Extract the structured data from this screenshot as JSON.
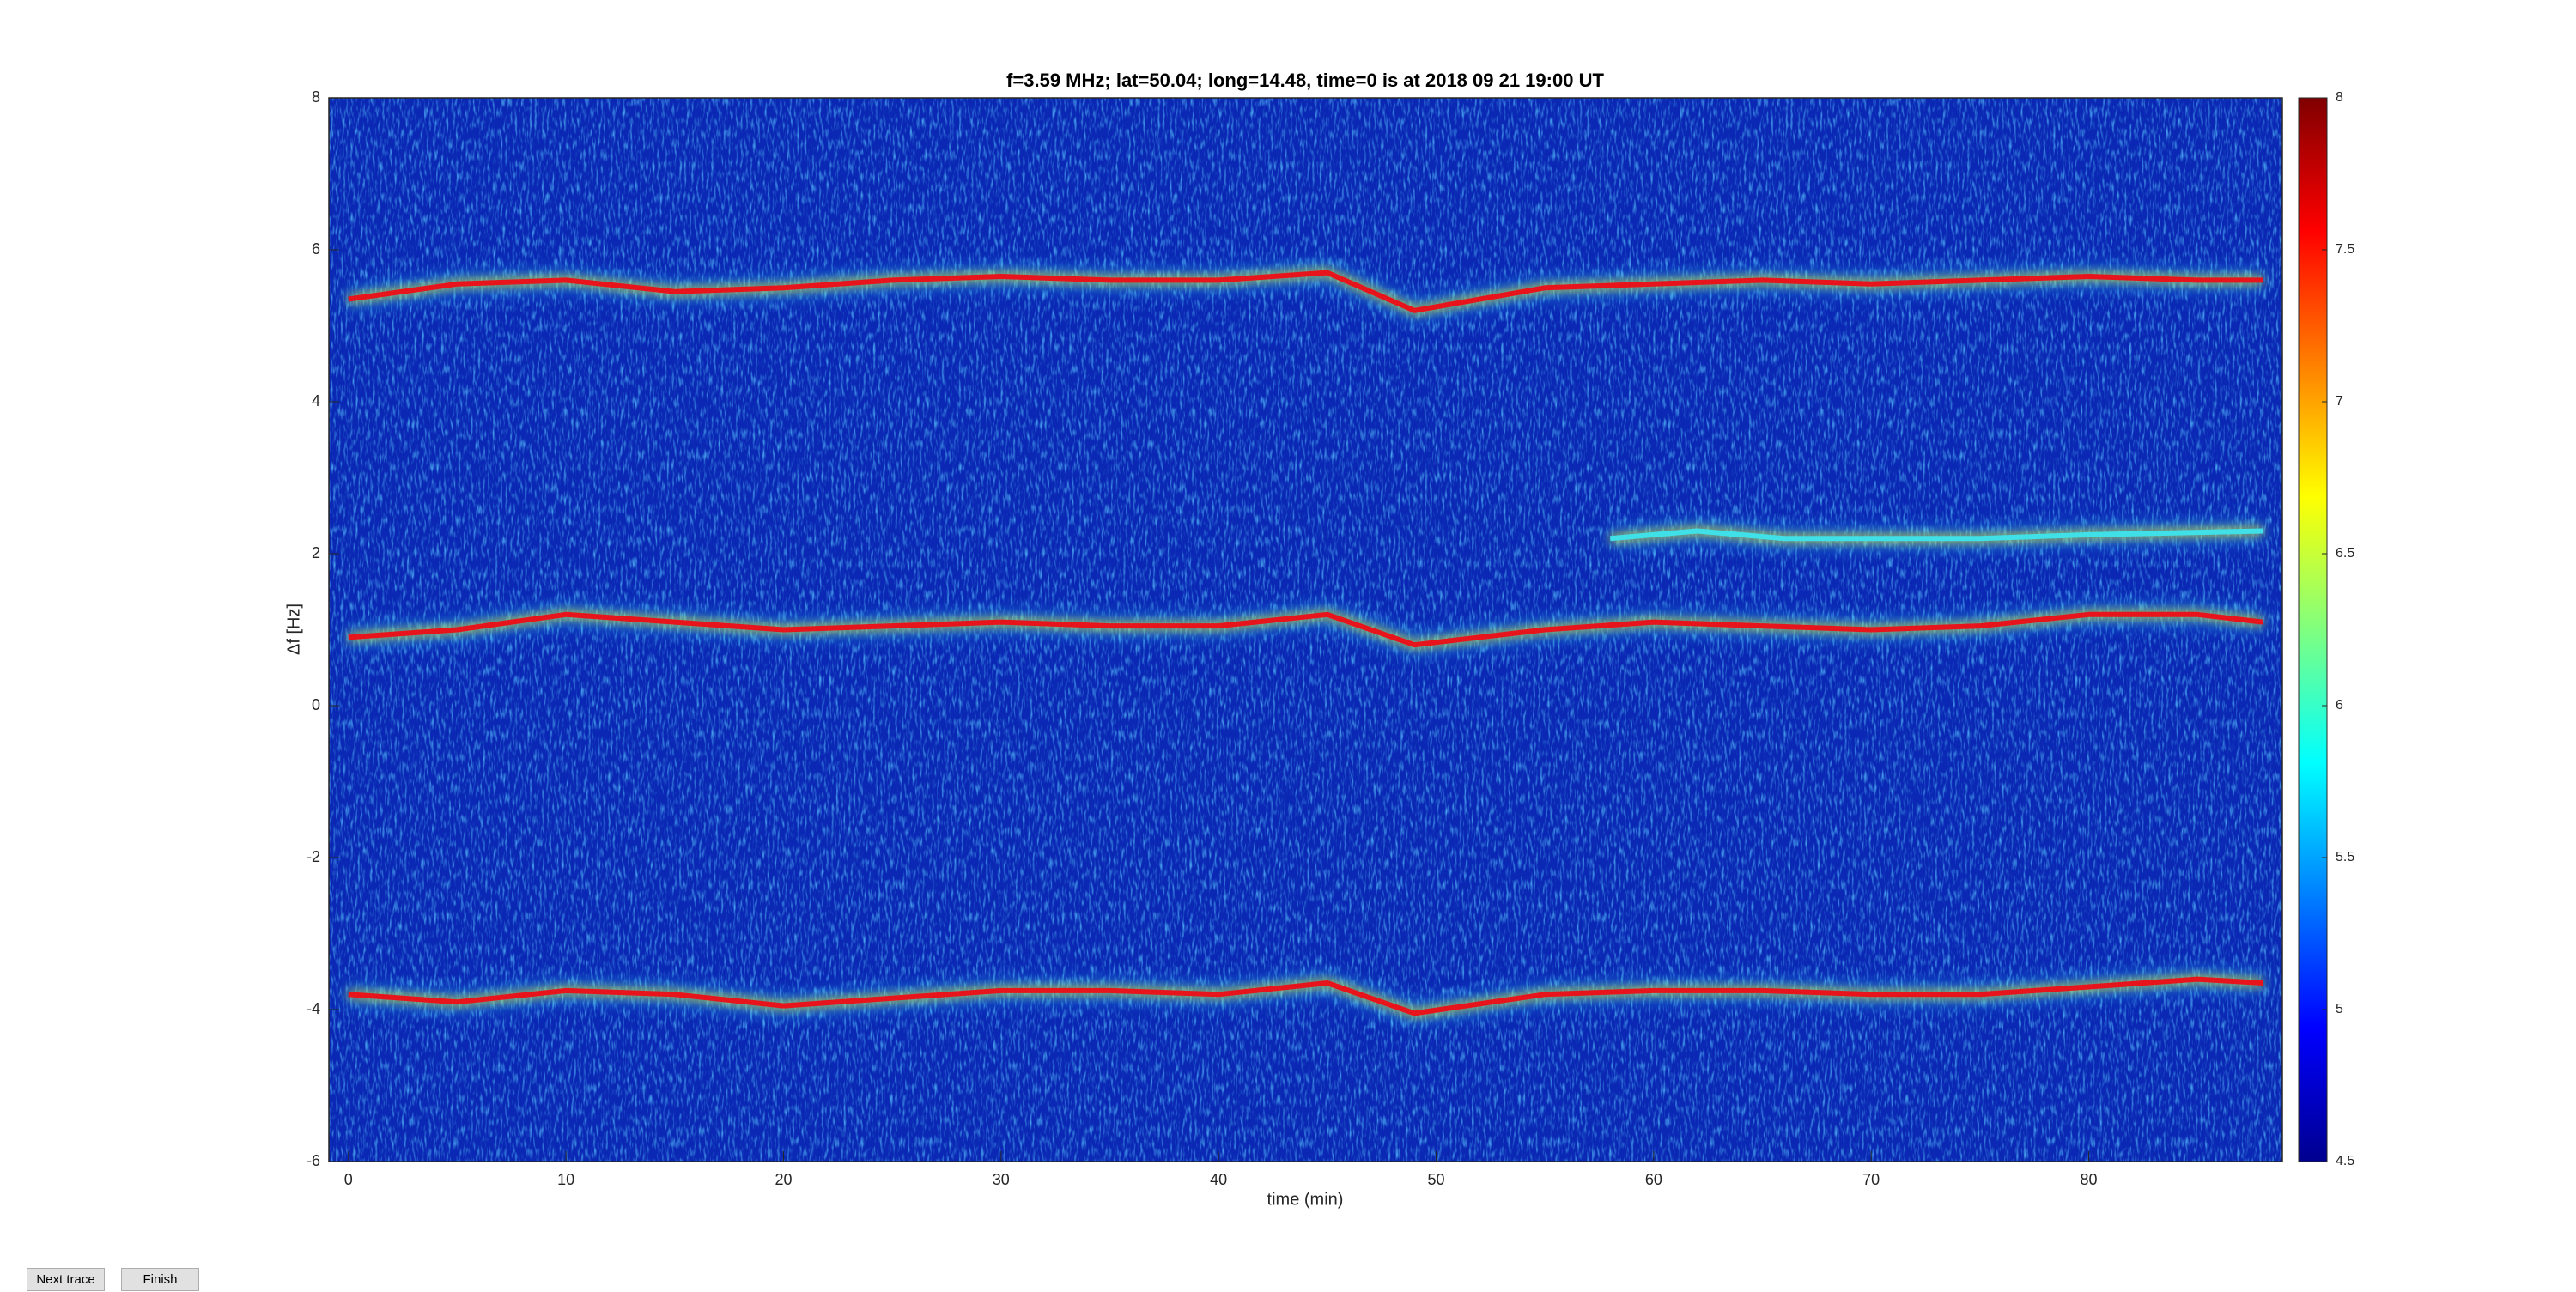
{
  "chart_data": {
    "type": "spectrogram",
    "title": "f=3.59 MHz;  lat=50.04; long=14.48, time=0 is at 2018 09 21 19:00 UT",
    "x_label": "time (min)",
    "y_label": "Δf [Hz]",
    "xlim": [
      -0.9,
      88.9
    ],
    "xticks": [
      0,
      10,
      20,
      30,
      40,
      50,
      60,
      70,
      80
    ],
    "ylim": [
      -6,
      8
    ],
    "yticks": [
      -6,
      -4,
      -2,
      0,
      2,
      4,
      6,
      8
    ],
    "clim": [
      4.5,
      8
    ],
    "cticks": [
      4.5,
      5,
      5.5,
      6,
      6.5,
      7,
      7.5,
      8
    ],
    "series": [
      {
        "color": "#e8141c",
        "x": [
          0,
          5,
          10,
          15,
          20,
          25,
          30,
          35,
          40,
          45,
          49,
          55,
          60,
          65,
          70,
          75,
          80,
          85,
          88
        ],
        "values": [
          5.35,
          5.55,
          5.6,
          5.45,
          5.5,
          5.6,
          5.65,
          5.6,
          5.6,
          5.7,
          5.2,
          5.5,
          5.55,
          5.6,
          5.55,
          5.6,
          5.65,
          5.6,
          5.6
        ]
      },
      {
        "color": "#e8141c",
        "x": [
          0,
          5,
          10,
          15,
          20,
          25,
          30,
          35,
          40,
          45,
          49,
          55,
          60,
          65,
          70,
          75,
          80,
          85,
          88
        ],
        "values": [
          0.9,
          1.0,
          1.2,
          1.1,
          1.0,
          1.05,
          1.1,
          1.05,
          1.05,
          1.2,
          0.8,
          1.0,
          1.1,
          1.05,
          1.0,
          1.05,
          1.2,
          1.2,
          1.1
        ]
      },
      {
        "color": "#e8141c",
        "x": [
          0,
          5,
          10,
          15,
          20,
          25,
          30,
          35,
          40,
          45,
          49,
          55,
          60,
          65,
          70,
          75,
          80,
          85,
          88
        ],
        "values": [
          -3.8,
          -3.9,
          -3.75,
          -3.8,
          -3.95,
          -3.85,
          -3.75,
          -3.75,
          -3.8,
          -3.65,
          -4.05,
          -3.8,
          -3.75,
          -3.75,
          -3.8,
          -3.8,
          -3.7,
          -3.6,
          -3.65
        ]
      },
      {
        "color": "#3fe0e8",
        "x": [
          58,
          62,
          66,
          70,
          75,
          80,
          88
        ],
        "values": [
          2.2,
          2.3,
          2.2,
          2.2,
          2.2,
          2.25,
          2.3
        ]
      }
    ]
  },
  "controls": [
    "Next trace",
    "Finish"
  ]
}
